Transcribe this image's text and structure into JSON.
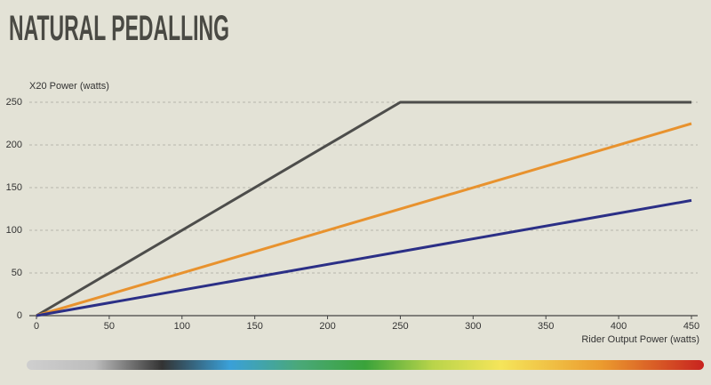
{
  "chart_data": {
    "type": "line",
    "title": "NATURAL PEDALLING",
    "y_label": "X20 Power (watts)",
    "x_label": "Rider Output Power (watts)",
    "xlim": [
      0,
      450
    ],
    "xticks": [
      0,
      50,
      100,
      150,
      200,
      250,
      300,
      350,
      400,
      450
    ],
    "ylim": [
      0,
      250
    ],
    "yticks": [
      0,
      50,
      100,
      150,
      200,
      250
    ],
    "grid": true,
    "series": [
      {
        "color": "#4d4d4b",
        "x": [
          0,
          250,
          450
        ],
        "values": [
          0,
          250,
          250
        ]
      },
      {
        "color": "#e8922e",
        "x": [
          0,
          450
        ],
        "values": [
          0,
          225
        ]
      },
      {
        "color": "#2b2f86",
        "x": [
          0,
          450
        ],
        "values": [
          0,
          135
        ]
      }
    ]
  }
}
